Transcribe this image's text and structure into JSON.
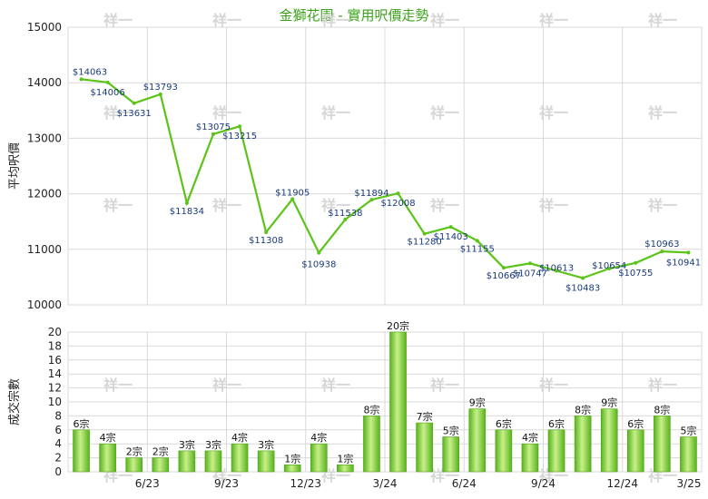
{
  "title": "金獅花園 - 實用呎價走勢",
  "colors": {
    "line": "#5cc318",
    "bar_light": "#c8f08a",
    "bar_dark": "#58b21c",
    "grid": "#d9d9d9",
    "label": "#1a3a7a"
  },
  "watermark": "祥一",
  "chart_data": [
    {
      "type": "line",
      "ylabel": "平均呎價",
      "ylim": [
        10000,
        15000
      ],
      "yticks": [
        "10000",
        "11000",
        "12000",
        "13000",
        "14000",
        "15000"
      ],
      "series": [
        {
          "values": [
            14063,
            14006,
            13631,
            13793,
            11834,
            13075,
            13215,
            11308,
            11905,
            10938,
            11538,
            11894,
            12008,
            11280,
            11403,
            11155,
            10667,
            10747,
            10613,
            10483,
            10654,
            10755,
            10963,
            10941
          ],
          "labels": [
            "$14063",
            "$14006",
            "$13631",
            "$13793",
            "$11834",
            "$13075",
            "$13215",
            "$11308",
            "$11905",
            "$10938",
            "$11538",
            "$11894",
            "$12008",
            "$11280",
            "$11403",
            "$11155",
            "$10667",
            "$10747",
            "$10613",
            "$10483",
            "$10654",
            "$10755",
            "$10963",
            "$10941"
          ]
        }
      ]
    },
    {
      "type": "bar",
      "ylabel": "成交宗數",
      "ylim": [
        0,
        20
      ],
      "yticks": [
        "0",
        "2",
        "4",
        "6",
        "8",
        "10",
        "12",
        "14",
        "16",
        "18",
        "20"
      ],
      "xticks": [
        "6/23",
        "9/23",
        "12/23",
        "3/24",
        "6/24",
        "9/24",
        "12/24",
        "3/25"
      ],
      "values": [
        6,
        4,
        2,
        2,
        3,
        3,
        4,
        3,
        1,
        4,
        1,
        8,
        20,
        7,
        5,
        9,
        6,
        4,
        6,
        8,
        9,
        6,
        8,
        5
      ],
      "labels": [
        "6宗",
        "4宗",
        "2宗",
        "2宗",
        "3宗",
        "3宗",
        "4宗",
        "3宗",
        "1宗",
        "4宗",
        "1宗",
        "8宗",
        "20宗",
        "7宗",
        "5宗",
        "9宗",
        "6宗",
        "4宗",
        "6宗",
        "8宗",
        "9宗",
        "6宗",
        "8宗",
        "5宗"
      ]
    }
  ]
}
